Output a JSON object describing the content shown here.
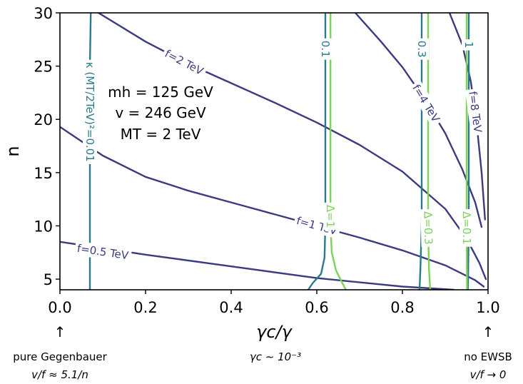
{
  "chart_data": {
    "type": "line",
    "xlabel": "γc/γ",
    "ylabel": "n",
    "xlim": [
      0.0,
      1.0
    ],
    "ylim": [
      4,
      30
    ],
    "x_ticks": [
      "0.0",
      "0.2",
      "0.4",
      "0.6",
      "0.8",
      "1.0"
    ],
    "y_ticks": [
      "5",
      "10",
      "15",
      "20",
      "25",
      "30"
    ],
    "grid": false,
    "colors": {
      "f": "#3b3b82",
      "kappa": "#2a7a8c",
      "delta": "#7bd35a"
    },
    "series": [
      {
        "name": "f=0.5 TeV",
        "group": "f",
        "points": [
          [
            0.0,
            8.5
          ],
          [
            0.2,
            7.3
          ],
          [
            0.4,
            6.2
          ],
          [
            0.6,
            5.1
          ],
          [
            0.8,
            4.3
          ],
          [
            0.92,
            4.0
          ]
        ]
      },
      {
        "name": "f=1 TeV",
        "group": "f",
        "points": [
          [
            0.0,
            19.3
          ],
          [
            0.1,
            16.6
          ],
          [
            0.2,
            14.6
          ],
          [
            0.3,
            13.3
          ],
          [
            0.4,
            12.2
          ],
          [
            0.5,
            11.1
          ],
          [
            0.6,
            10.0
          ],
          [
            0.7,
            8.9
          ],
          [
            0.8,
            7.7
          ],
          [
            0.9,
            6.3
          ],
          [
            0.97,
            4.9
          ],
          [
            0.99,
            4.3
          ]
        ]
      },
      {
        "name": "f=2 TeV",
        "group": "f",
        "points": [
          [
            0.09,
            30.0
          ],
          [
            0.2,
            27.3
          ],
          [
            0.3,
            25.2
          ],
          [
            0.4,
            23.4
          ],
          [
            0.5,
            21.6
          ],
          [
            0.6,
            19.7
          ],
          [
            0.7,
            17.6
          ],
          [
            0.8,
            15.1
          ],
          [
            0.9,
            11.6
          ],
          [
            0.95,
            8.8
          ],
          [
            0.98,
            6.5
          ],
          [
            0.995,
            5.0
          ]
        ]
      },
      {
        "name": "f=4 TeV",
        "group": "f",
        "points": [
          [
            0.69,
            30.0
          ],
          [
            0.75,
            27.3
          ],
          [
            0.8,
            24.9
          ],
          [
            0.85,
            22.0
          ],
          [
            0.9,
            18.7
          ],
          [
            0.94,
            15.3
          ],
          [
            0.97,
            12.2
          ],
          [
            0.985,
            9.9
          ]
        ]
      },
      {
        "name": "f=8 TeV",
        "group": "f",
        "points": [
          [
            0.91,
            30.0
          ],
          [
            0.94,
            27.0
          ],
          [
            0.96,
            23.5
          ],
          [
            0.975,
            19.0
          ],
          [
            0.985,
            15.0
          ],
          [
            0.993,
            10.6
          ]
        ]
      },
      {
        "name": "κ (MT/2TeV)²=0.01",
        "group": "kappa",
        "points": [
          [
            0.072,
            30.0
          ],
          [
            0.07,
            25.0
          ],
          [
            0.07,
            20.0
          ],
          [
            0.07,
            15.0
          ],
          [
            0.07,
            10.0
          ],
          [
            0.07,
            4.0
          ]
        ]
      },
      {
        "name": "0.1",
        "group": "kappa",
        "points": [
          [
            0.62,
            30.0
          ],
          [
            0.62,
            25.0
          ],
          [
            0.62,
            20.0
          ],
          [
            0.62,
            15.0
          ],
          [
            0.62,
            10.0
          ],
          [
            0.618,
            7.0
          ],
          [
            0.61,
            5.5
          ],
          [
            0.59,
            4.6
          ],
          [
            0.58,
            4.0
          ]
        ]
      },
      {
        "name": "0.3",
        "group": "kappa",
        "points": [
          [
            0.845,
            30.0
          ],
          [
            0.845,
            25.0
          ],
          [
            0.845,
            20.0
          ],
          [
            0.845,
            15.0
          ],
          [
            0.845,
            10.0
          ],
          [
            0.842,
            6.0
          ],
          [
            0.84,
            4.0
          ]
        ]
      },
      {
        "name": "1",
        "group": "kappa",
        "points": [
          [
            0.955,
            30.0
          ],
          [
            0.955,
            20.0
          ],
          [
            0.955,
            10.0
          ],
          [
            0.953,
            4.0
          ]
        ]
      },
      {
        "name": "Δ=1",
        "group": "delta",
        "points": [
          [
            0.632,
            30.0
          ],
          [
            0.632,
            25.0
          ],
          [
            0.632,
            20.0
          ],
          [
            0.632,
            15.0
          ],
          [
            0.632,
            10.0
          ],
          [
            0.635,
            7.5
          ],
          [
            0.645,
            5.8
          ],
          [
            0.66,
            4.6
          ],
          [
            0.668,
            4.0
          ]
        ]
      },
      {
        "name": "Δ=0.3",
        "group": "delta",
        "points": [
          [
            0.86,
            30.0
          ],
          [
            0.86,
            20.0
          ],
          [
            0.86,
            10.0
          ],
          [
            0.862,
            6.0
          ],
          [
            0.865,
            4.0
          ]
        ]
      },
      {
        "name": "Δ=0.1",
        "group": "delta",
        "points": [
          [
            0.95,
            30.0
          ],
          [
            0.95,
            20.0
          ],
          [
            0.95,
            10.0
          ],
          [
            0.951,
            4.0
          ]
        ]
      }
    ],
    "contour_labels": [
      {
        "text": "f=0.5 TeV",
        "x": 0.1,
        "y": 7.55,
        "group": "f"
      },
      {
        "text": "f=1 TeV",
        "x": 0.6,
        "y": 10.0,
        "group": "f"
      },
      {
        "text": "f=2 TeV",
        "x": 0.29,
        "y": 25.35,
        "group": "f"
      },
      {
        "text": "f=4 TeV",
        "x": 0.855,
        "y": 21.5,
        "group": "f"
      },
      {
        "text": "f=8 TeV",
        "x": 0.97,
        "y": 20.7,
        "group": "f"
      },
      {
        "text": "κ (MT/2TeV)²=0.01",
        "x": 0.07,
        "y": 20.7,
        "group": "kappa"
      },
      {
        "text": "0.1",
        "x": 0.62,
        "y": 26.6,
        "group": "kappa"
      },
      {
        "text": "0.3",
        "x": 0.845,
        "y": 26.6,
        "group": "kappa"
      },
      {
        "text": "1",
        "x": 0.955,
        "y": 27.0,
        "group": "kappa"
      },
      {
        "text": "Δ=1",
        "x": 0.632,
        "y": 10.9,
        "group": "delta"
      },
      {
        "text": "Δ=0.3",
        "x": 0.86,
        "y": 9.8,
        "group": "delta"
      },
      {
        "text": "Δ=0.1",
        "x": 0.95,
        "y": 9.8,
        "group": "delta"
      }
    ],
    "annotations": {
      "params": [
        "mh = 125 GeV",
        "v = 246 GeV",
        "MT = 2 TeV"
      ],
      "left_arrow": "↑",
      "left_note": [
        "pure Gegenbauer",
        "v/f ≈ 5.1/n"
      ],
      "center_note": "γc ∼ 10⁻³",
      "right_arrow": "↑",
      "right_note": [
        "no EWSB",
        "v/f → 0"
      ]
    }
  }
}
